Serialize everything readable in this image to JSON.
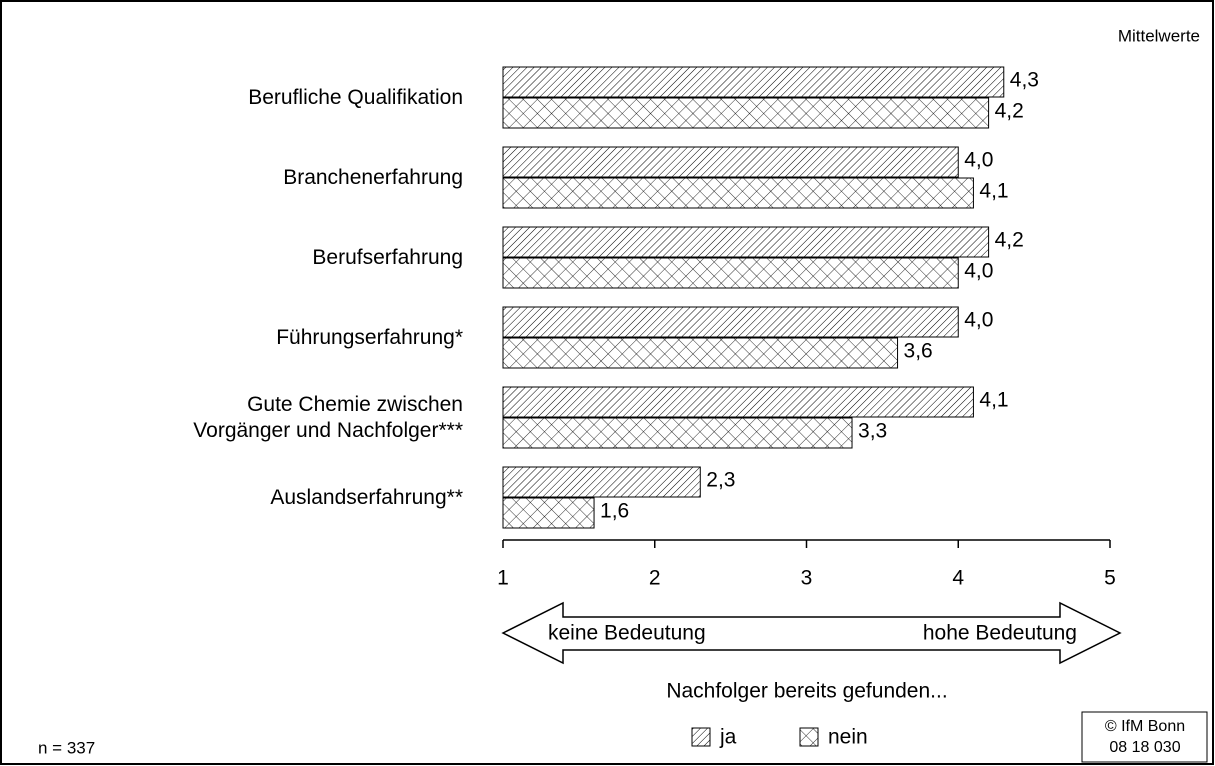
{
  "chart_data": {
    "type": "barh",
    "corner_label": "Mittelwerte",
    "categories": [
      "Berufliche Qualifikation",
      "Branchenerfahrung",
      "Berufserfahrung",
      "Führungserfahrung*",
      "Gute Chemie zwischen\nVorgänger und Nachfolger***",
      "Auslandserfahrung**"
    ],
    "series": [
      {
        "name": "ja",
        "pattern": "diagonal",
        "color": "#000000",
        "values": [
          4.3,
          4.0,
          4.2,
          4.0,
          4.1,
          2.3
        ],
        "value_labels": [
          "4,3",
          "4,0",
          "4,2",
          "4,0",
          "4,1",
          "2,3"
        ]
      },
      {
        "name": "nein",
        "pattern": "crosshatch",
        "color": "#000000",
        "values": [
          4.2,
          4.1,
          4.0,
          3.6,
          3.3,
          1.6
        ],
        "value_labels": [
          "4,2",
          "4,1",
          "4,0",
          "3,6",
          "3,3",
          "1,6"
        ]
      }
    ],
    "xlim": [
      1,
      5
    ],
    "xticks": [
      1,
      2,
      3,
      4,
      5
    ],
    "scale_left": "keine Bedeutung",
    "scale_right": "hohe Bedeutung",
    "legend_title": "Nachfolger bereits gefunden...",
    "note": "n = 337",
    "source": [
      "© IfM Bonn",
      "08 18 030"
    ]
  }
}
